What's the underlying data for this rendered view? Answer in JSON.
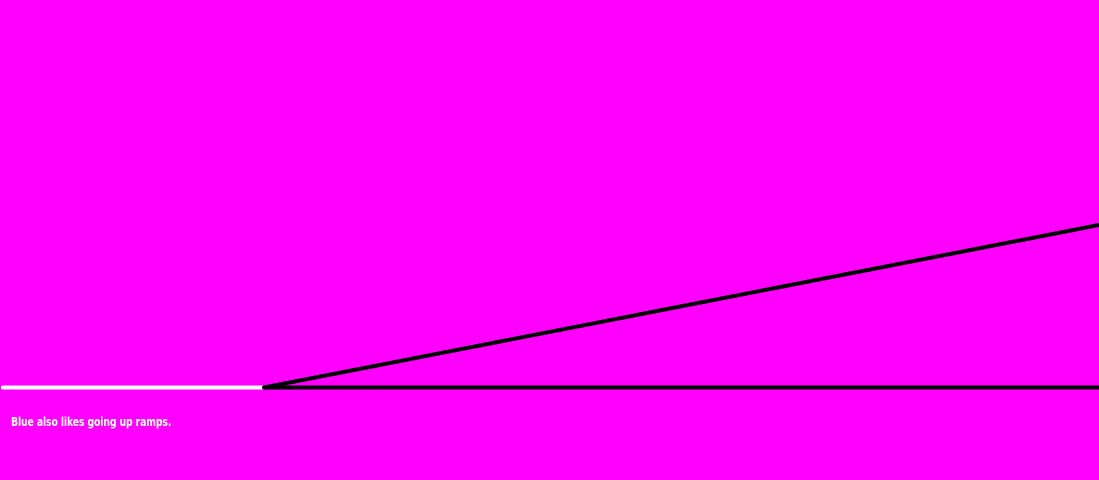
{
  "colors": {
    "background": "#ff00ff",
    "traveled_line": "#ffffff",
    "ground_line": "#000000",
    "ramp_line": "#000000",
    "caption_text": "#ffffff"
  },
  "caption": {
    "text": "Blue also likes going up ramps."
  }
}
